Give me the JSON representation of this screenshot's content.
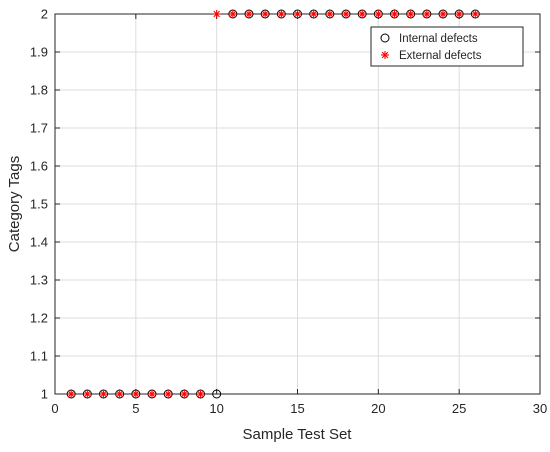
{
  "colors": {
    "background": "#ffffff",
    "axis": "#262626",
    "grid": "#dcdcdc",
    "internal_marker": "#000000",
    "external_marker": "#ff0000"
  },
  "chart_data": {
    "type": "scatter",
    "title": "",
    "xlabel": "Sample Test Set",
    "ylabel": "Category Tags",
    "xlim": [
      0,
      30
    ],
    "ylim": [
      1,
      2
    ],
    "xticks": [
      0,
      5,
      10,
      15,
      20,
      25,
      30
    ],
    "yticks": [
      1,
      1.1,
      1.2,
      1.3,
      1.4,
      1.5,
      1.6,
      1.7,
      1.8,
      1.9,
      2
    ],
    "ytick_labels": [
      "1",
      "1.1",
      "1.2",
      "1.3",
      "1.4",
      "1.5",
      "1.6",
      "1.7",
      "1.8",
      "1.9",
      "2"
    ],
    "grid": true,
    "legend_position": "top-right",
    "series": [
      {
        "name": "Internal defects",
        "marker": "circle",
        "color": "#000000",
        "x": [
          1,
          2,
          3,
          4,
          5,
          6,
          7,
          8,
          9,
          10,
          11,
          12,
          13,
          14,
          15,
          16,
          17,
          18,
          19,
          20,
          21,
          22,
          23,
          24,
          25,
          26
        ],
        "y": [
          1,
          1,
          1,
          1,
          1,
          1,
          1,
          1,
          1,
          1,
          2,
          2,
          2,
          2,
          2,
          2,
          2,
          2,
          2,
          2,
          2,
          2,
          2,
          2,
          2,
          2
        ]
      },
      {
        "name": "External defects",
        "marker": "asterisk",
        "color": "#ff0000",
        "x": [
          1,
          2,
          3,
          4,
          5,
          6,
          7,
          8,
          9,
          10,
          11,
          12,
          13,
          14,
          15,
          16,
          17,
          18,
          19,
          20,
          21,
          22,
          23,
          24,
          25,
          26
        ],
        "y": [
          1,
          1,
          1,
          1,
          1,
          1,
          1,
          1,
          1,
          2,
          2,
          2,
          2,
          2,
          2,
          2,
          2,
          2,
          2,
          2,
          2,
          2,
          2,
          2,
          2,
          2
        ]
      }
    ]
  }
}
